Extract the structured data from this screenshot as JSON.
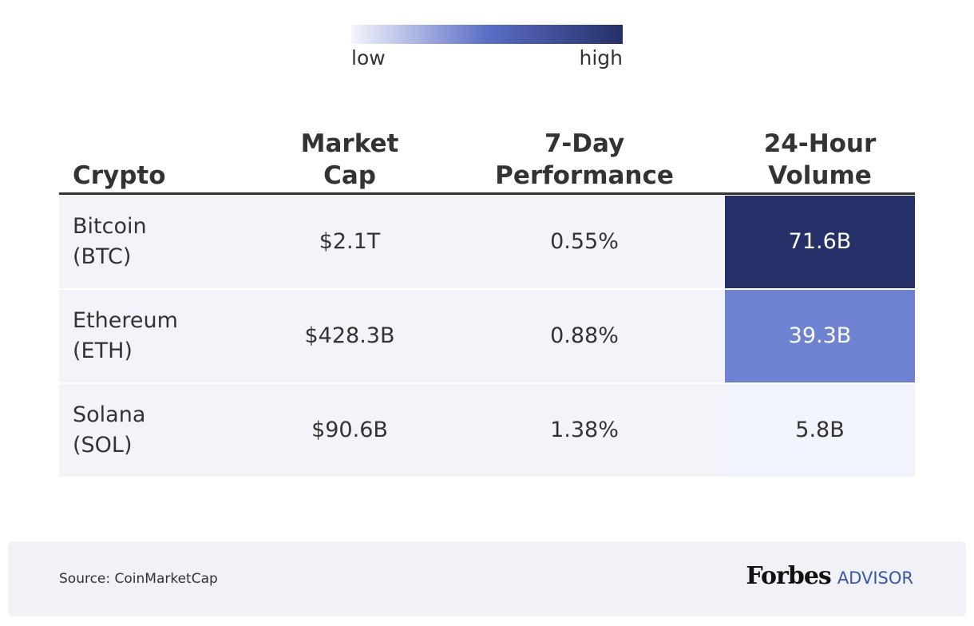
{
  "legend": {
    "low": "low",
    "high": "high",
    "gradient": [
      "#f4f5fd",
      "#5b6ec6",
      "#253068"
    ]
  },
  "table": {
    "headers": [
      "Crypto",
      "Market\nCap",
      "7-Day\nPerformance",
      "24-Hour\nVolume"
    ],
    "rows": [
      [
        "Bitcoin\n(BTC)",
        "$2.1T",
        "0.55%",
        "71.6B"
      ],
      [
        "Ethereum\n(ETH)",
        "$428.3B",
        "0.88%",
        "39.3B"
      ],
      [
        "Solana\n(SOL)",
        "$90.6B",
        "1.38%",
        "5.8B"
      ]
    ],
    "heat_colors": [
      "#253068",
      "#6f82d2",
      "#f1f4fc"
    ],
    "heat_text_colors": [
      "#ffffff",
      "#ffffff",
      "#333333"
    ]
  },
  "footer": {
    "source": "Source: CoinMarketCap",
    "brand": "Forbes",
    "brand_suffix": "ADVISOR"
  }
}
